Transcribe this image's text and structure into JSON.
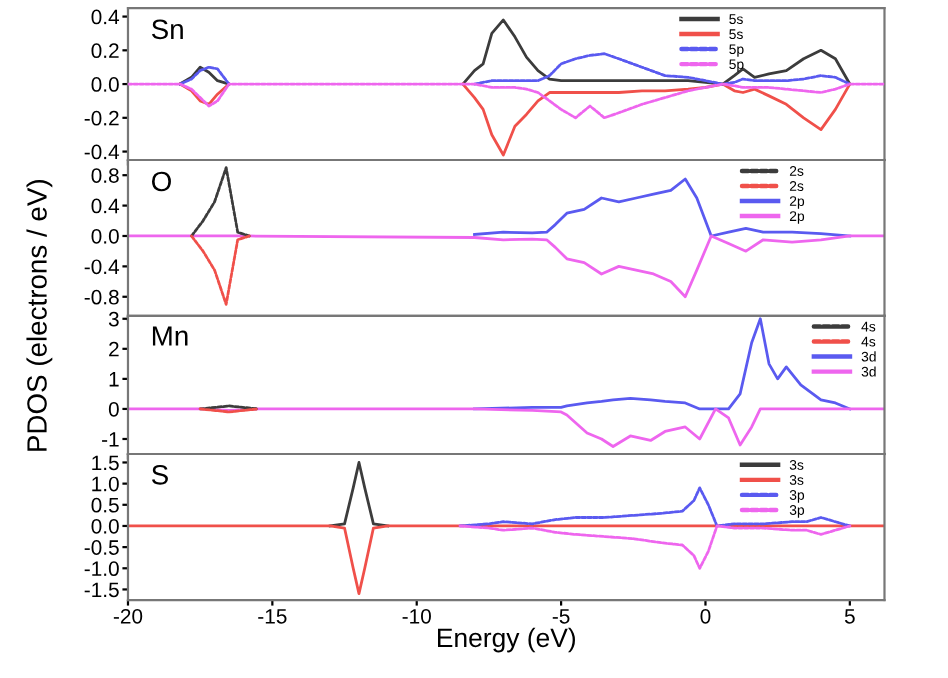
{
  "chart_data": [
    {
      "type": "line",
      "annotations": [
        "Sn"
      ],
      "legend": "top right",
      "tick_labels": "y",
      "xlim": [
        -20,
        6.2
      ],
      "xticks": [
        -20,
        -15,
        -10,
        -5,
        0,
        5
      ],
      "ylim": [
        -0.45,
        0.45
      ],
      "yticks": [
        0.4,
        0.2,
        {
          "value": 0,
          "label": "0.0"
        },
        -0.2,
        -0.4
      ],
      "x": [
        -20,
        -18.2,
        -17.8,
        -17.5,
        -17.2,
        -16.9,
        -16.5,
        -12.5,
        -12,
        -8.4,
        -8,
        -7.7,
        -7.4,
        -7.0,
        -6.6,
        -6.2,
        -5.8,
        -5.4,
        -5,
        -4.5,
        -4,
        -3.5,
        -3,
        -2.2,
        -1.4,
        -0.6,
        0,
        0.6,
        1.0,
        1.3,
        1.7,
        2.2,
        2.8,
        3.4,
        4.0,
        4.5,
        5.0,
        6.2
      ],
      "series": [
        {
          "name": "5s",
          "color": "#3c3c3c",
          "line_style": "solid",
          "values": [
            null,
            0,
            0.04,
            0.1,
            0.07,
            0.02,
            0,
            null,
            null,
            0,
            0.08,
            0.12,
            0.3,
            0.38,
            0.28,
            0.16,
            0.08,
            0.03,
            0.02,
            0.02,
            0.02,
            0.02,
            0.02,
            0.02,
            0.02,
            0.02,
            0.01,
            0,
            0.05,
            0.09,
            0.04,
            0.06,
            0.08,
            0.15,
            0.2,
            0.15,
            0,
            null
          ]
        },
        {
          "name": "5s",
          "color": "#f0504a",
          "line_style": "solid",
          "values": [
            null,
            0,
            -0.04,
            -0.1,
            -0.12,
            -0.06,
            0,
            null,
            null,
            0,
            -0.08,
            -0.15,
            -0.3,
            -0.42,
            -0.25,
            -0.18,
            -0.1,
            -0.05,
            -0.05,
            -0.05,
            -0.05,
            -0.05,
            -0.05,
            -0.04,
            -0.04,
            -0.03,
            -0.02,
            0,
            -0.04,
            -0.05,
            -0.03,
            -0.07,
            -0.12,
            -0.2,
            -0.27,
            -0.15,
            0,
            null
          ]
        },
        {
          "name": "5p",
          "color": "#5a5af0",
          "line_style": "dotted",
          "values": [
            null,
            0,
            0.03,
            0.08,
            0.1,
            0.09,
            0,
            null,
            null,
            null,
            0,
            0.01,
            0.02,
            0.02,
            0.02,
            0.02,
            0.02,
            0.05,
            0.12,
            0.15,
            0.17,
            0.18,
            0.15,
            0.1,
            0.05,
            0.04,
            0.02,
            0,
            0.01,
            0.03,
            0.02,
            0.02,
            0.02,
            0.03,
            0.05,
            0.04,
            0,
            null
          ]
        },
        {
          "name": "5p",
          "color": "#ee66ee",
          "line_style": "dotted",
          "values": [
            0,
            0,
            -0.03,
            -0.08,
            -0.13,
            -0.1,
            0,
            0,
            0,
            0,
            0,
            -0.01,
            -0.02,
            -0.02,
            -0.02,
            -0.03,
            -0.05,
            -0.1,
            -0.15,
            -0.2,
            -0.13,
            -0.2,
            -0.17,
            -0.12,
            -0.08,
            -0.04,
            -0.02,
            0,
            -0.01,
            -0.02,
            -0.02,
            -0.02,
            -0.03,
            -0.04,
            -0.05,
            -0.03,
            0,
            0
          ]
        }
      ]
    },
    {
      "type": "line",
      "annotations": [
        "O"
      ],
      "legend": "top right",
      "tick_labels": "y",
      "ylabel": "PDOS (electrons / eV)",
      "xlim": [
        -20,
        6.2
      ],
      "xticks": [
        -20,
        -15,
        -10,
        -5,
        0,
        5
      ],
      "ylim": [
        -1.05,
        1.0
      ],
      "yticks": [
        0.8,
        0.4,
        {
          "value": 0,
          "label": "0.0"
        },
        -0.4,
        -0.8
      ],
      "x": [
        -20,
        -17.8,
        -17.4,
        -17.0,
        -16.6,
        -16.2,
        -15.8,
        -8,
        -7,
        -6,
        -5.5,
        -5.2,
        -4.8,
        -4.2,
        -3.6,
        -3.0,
        -2.4,
        -1.8,
        -1.2,
        -0.7,
        -0.3,
        0.2,
        0.8,
        1.4,
        2,
        3,
        4,
        5,
        6.2
      ],
      "series": [
        {
          "name": "2s",
          "color": "#3c3c3c",
          "line_style": "dotted",
          "values": [
            null,
            0,
            0.2,
            0.45,
            0.9,
            0.05,
            0,
            null,
            null,
            null,
            null,
            null,
            null,
            null,
            null,
            null,
            null,
            null,
            null,
            null,
            null,
            null,
            null,
            null,
            null,
            null,
            null,
            null,
            null
          ]
        },
        {
          "name": "2s",
          "color": "#f0504a",
          "line_style": "dotted",
          "values": [
            null,
            0,
            -0.2,
            -0.45,
            -0.9,
            -0.05,
            0,
            null,
            null,
            null,
            null,
            null,
            null,
            null,
            null,
            null,
            null,
            null,
            null,
            null,
            null,
            null,
            null,
            null,
            null,
            null,
            null,
            null,
            null
          ]
        },
        {
          "name": "2p",
          "color": "#5a5af0",
          "line_style": "solid",
          "values": [
            null,
            null,
            null,
            null,
            null,
            null,
            null,
            0.02,
            0.05,
            0.04,
            0.05,
            0.15,
            0.3,
            0.35,
            0.5,
            0.45,
            0.5,
            0.55,
            0.6,
            0.75,
            0.5,
            0,
            0.05,
            0.1,
            0.05,
            0.05,
            0.03,
            0,
            null
          ]
        },
        {
          "name": "2p",
          "color": "#ee66ee",
          "line_style": "solid",
          "values": [
            0,
            0,
            0,
            0,
            0,
            0,
            0,
            -0.02,
            -0.05,
            -0.04,
            -0.05,
            -0.15,
            -0.3,
            -0.35,
            -0.5,
            -0.4,
            -0.45,
            -0.5,
            -0.6,
            -0.8,
            -0.45,
            0,
            -0.1,
            -0.2,
            -0.05,
            -0.08,
            -0.05,
            0,
            0
          ]
        }
      ]
    },
    {
      "type": "line",
      "annotations": [
        "Mn"
      ],
      "legend": "top right",
      "tick_labels": "y",
      "xlim": [
        -20,
        6.2
      ],
      "xticks": [
        -20,
        -15,
        -10,
        -5,
        0,
        5
      ],
      "ylim": [
        -1.5,
        3.1
      ],
      "yticks": [
        3,
        2,
        1,
        0,
        -1
      ],
      "x": [
        -20,
        -17.5,
        -16.5,
        -15.5,
        -8,
        -6,
        -5,
        -4.8,
        -4.1,
        -3.6,
        -3.2,
        -2.6,
        -1.9,
        -1.4,
        -0.7,
        -0.2,
        0.35,
        0.8,
        1.2,
        1.6,
        1.9,
        2.2,
        2.5,
        2.8,
        3.3,
        4,
        4.5,
        5,
        6.2
      ],
      "series": [
        {
          "name": "4s",
          "color": "#3c3c3c",
          "line_style": "dotted",
          "values": [
            null,
            0,
            0.1,
            0,
            null,
            null,
            null,
            null,
            null,
            null,
            null,
            null,
            null,
            null,
            null,
            null,
            null,
            null,
            null,
            null,
            null,
            null,
            null,
            null,
            null,
            null,
            null,
            null,
            null
          ]
        },
        {
          "name": "4s",
          "color": "#f0504a",
          "line_style": "dotted",
          "values": [
            null,
            0,
            -0.1,
            0,
            null,
            null,
            null,
            null,
            null,
            null,
            null,
            null,
            null,
            null,
            null,
            null,
            null,
            null,
            null,
            null,
            null,
            null,
            null,
            null,
            null,
            null,
            null,
            null,
            null
          ]
        },
        {
          "name": "3d",
          "color": "#5a5af0",
          "line_style": "solid",
          "values": [
            null,
            null,
            null,
            null,
            0,
            0.05,
            0.05,
            0.1,
            0.2,
            0.25,
            0.3,
            0.35,
            0.3,
            0.25,
            0.2,
            0,
            0,
            0,
            0.5,
            2.2,
            3.0,
            1.5,
            1.0,
            1.4,
            0.8,
            0.3,
            0.2,
            0,
            null
          ]
        },
        {
          "name": "3d",
          "color": "#ee66ee",
          "line_style": "solid",
          "values": [
            0,
            0,
            -0.05,
            0,
            0,
            -0.05,
            -0.1,
            -0.2,
            -0.8,
            -1.0,
            -1.25,
            -0.9,
            -1.05,
            -0.75,
            -0.6,
            -1.0,
            0,
            -0.3,
            -1.2,
            -0.6,
            0,
            0,
            0,
            0,
            0,
            0,
            0,
            0,
            0
          ]
        }
      ]
    },
    {
      "type": "line",
      "annotations": [
        "S"
      ],
      "legend": "top right",
      "xlabel": "Energy (eV)",
      "xlim": [
        -20,
        6.2
      ],
      "xticks": [
        -20,
        -15,
        -10,
        -5,
        0,
        5
      ],
      "ylim": [
        -1.75,
        1.7
      ],
      "yticks": [
        1.5,
        {
          "value": 1,
          "label": "1.0"
        },
        0.5,
        {
          "value": 0,
          "label": "0.0"
        },
        -0.5,
        {
          "value": -1,
          "label": "-1.0"
        },
        -1.5
      ],
      "x": [
        -20,
        -17.5,
        -13,
        -12.5,
        -12.2,
        -12.0,
        -11.8,
        -11.5,
        -11,
        -8.5,
        -7.5,
        -7,
        -6,
        -5.2,
        -4.5,
        -3.5,
        -2.5,
        -1.5,
        -0.8,
        -0.4,
        -0.2,
        0.1,
        0.4,
        1,
        2,
        3,
        3.5,
        4,
        4.5,
        5,
        6.2
      ],
      "series": [
        {
          "name": "3s",
          "color": "#3c3c3c",
          "line_style": "solid",
          "values": [
            null,
            null,
            0,
            0.05,
            0.9,
            1.5,
            0.9,
            0.05,
            0,
            null,
            null,
            null,
            null,
            null,
            null,
            null,
            null,
            null,
            null,
            null,
            null,
            null,
            null,
            null,
            null,
            null,
            null,
            null,
            null,
            null,
            null
          ]
        },
        {
          "name": "3s",
          "color": "#f0504a",
          "line_style": "solid",
          "values": [
            0,
            0,
            0,
            -0.05,
            -1.0,
            -1.6,
            -1.0,
            -0.05,
            0,
            0,
            0,
            0,
            0,
            0,
            0,
            0,
            0,
            0,
            0,
            0,
            0,
            0,
            0,
            0,
            0,
            0,
            0,
            0,
            0,
            0,
            0
          ]
        },
        {
          "name": "3p",
          "color": "#5a5af0",
          "line_style": "dotted",
          "values": [
            null,
            null,
            null,
            null,
            null,
            null,
            null,
            null,
            null,
            0,
            0.05,
            0.1,
            0.05,
            0.15,
            0.2,
            0.2,
            0.25,
            0.3,
            0.35,
            0.6,
            0.9,
            0.5,
            0,
            0.05,
            0.05,
            0.1,
            0.1,
            0.2,
            0.1,
            0,
            null
          ]
        },
        {
          "name": "3p",
          "color": "#ee66ee",
          "line_style": "dotted",
          "values": [
            null,
            null,
            null,
            null,
            null,
            null,
            null,
            null,
            null,
            0,
            -0.05,
            -0.1,
            -0.05,
            -0.15,
            -0.2,
            -0.25,
            -0.3,
            -0.4,
            -0.45,
            -0.7,
            -1.0,
            -0.6,
            0,
            -0.05,
            -0.05,
            -0.1,
            -0.1,
            -0.2,
            -0.1,
            0,
            null
          ]
        }
      ]
    }
  ]
}
